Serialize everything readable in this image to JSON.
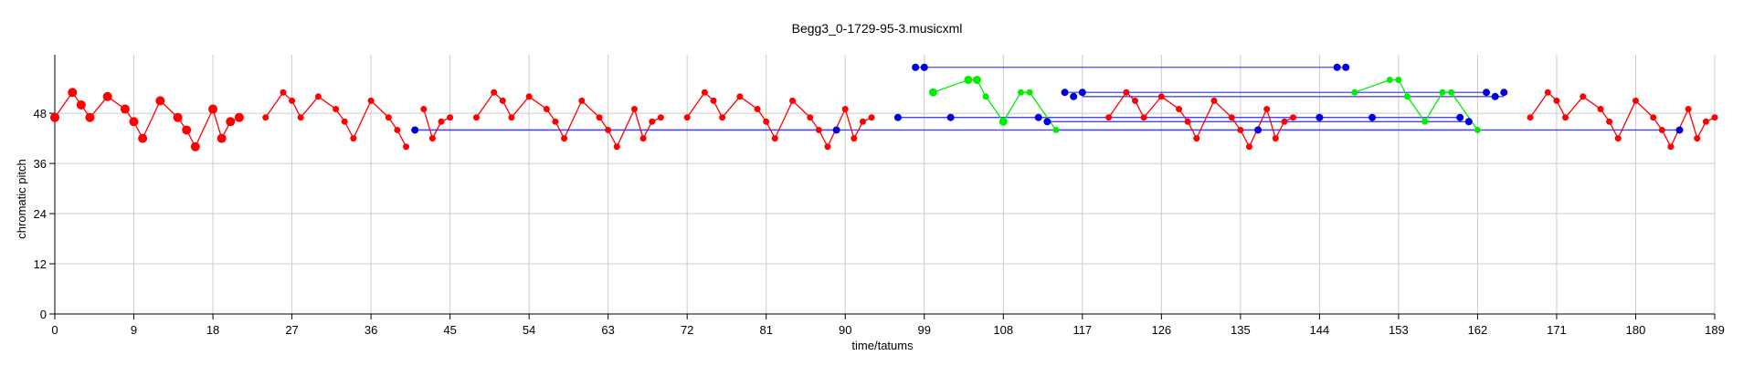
{
  "chart_data": {
    "type": "scatter",
    "title": "Begg3_0-1729-95-3.musicxml",
    "xlabel": "time/tatums",
    "ylabel": "chromatic pitch",
    "xlim": [
      0,
      189
    ],
    "ylim": [
      0,
      62
    ],
    "x_ticks": [
      "0",
      "9",
      "18",
      "27",
      "36",
      "45",
      "54",
      "63",
      "72",
      "81",
      "90",
      "99",
      "108",
      "117",
      "126",
      "135",
      "144",
      "153",
      "162",
      "171",
      "180",
      "189"
    ],
    "y_ticks": [
      "0",
      "12",
      "24",
      "36",
      "48"
    ],
    "grid": true,
    "colors": {
      "red": "#ff0000",
      "blue": "#0000dd",
      "green": "#00ee00",
      "blue_line": "#4444ff",
      "grid": "#cccccc"
    },
    "series": [
      {
        "color": "red",
        "segments": [
          [
            [
              0,
              47,
              9
            ],
            [
              2,
              53,
              9
            ],
            [
              3,
              50,
              9
            ],
            [
              4,
              47,
              9
            ],
            [
              6,
              52,
              9
            ],
            [
              8,
              49,
              9
            ],
            [
              9,
              46,
              9
            ],
            [
              10,
              42,
              9
            ],
            [
              12,
              51,
              9
            ],
            [
              14,
              47,
              9
            ],
            [
              15,
              44,
              9
            ],
            [
              16,
              40,
              9
            ],
            [
              18,
              49,
              9
            ],
            [
              19,
              42,
              9
            ],
            [
              20,
              46,
              9
            ],
            [
              21,
              47,
              9
            ]
          ],
          [
            [
              24,
              47,
              6
            ],
            [
              26,
              53,
              6
            ],
            [
              27,
              51,
              6
            ],
            [
              28,
              47,
              6
            ],
            [
              30,
              52,
              6
            ],
            [
              32,
              49,
              6
            ],
            [
              33,
              46,
              6
            ],
            [
              34,
              42,
              6
            ],
            [
              36,
              51,
              6
            ],
            [
              38,
              47,
              6
            ],
            [
              39,
              44,
              6
            ],
            [
              40,
              40,
              6
            ]
          ],
          [
            [
              42,
              49,
              6
            ],
            [
              43,
              42,
              6
            ],
            [
              44,
              46,
              6
            ],
            [
              45,
              47,
              6
            ]
          ],
          [
            [
              48,
              47,
              6
            ],
            [
              50,
              53,
              6
            ],
            [
              51,
              51,
              6
            ],
            [
              52,
              47,
              6
            ],
            [
              54,
              52,
              6
            ],
            [
              56,
              49,
              6
            ],
            [
              57,
              46,
              6
            ],
            [
              58,
              42,
              6
            ],
            [
              60,
              51,
              6
            ],
            [
              62,
              47,
              6
            ],
            [
              63,
              44,
              6
            ],
            [
              64,
              40,
              6
            ],
            [
              66,
              49,
              6
            ],
            [
              67,
              42,
              6
            ],
            [
              68,
              46,
              6
            ],
            [
              69,
              47,
              6
            ]
          ],
          [
            [
              72,
              47,
              6
            ],
            [
              74,
              53,
              6
            ],
            [
              75,
              51,
              6
            ],
            [
              76,
              47,
              6
            ],
            [
              78,
              52,
              6
            ],
            [
              80,
              49,
              6
            ],
            [
              81,
              46,
              6
            ],
            [
              82,
              42,
              6
            ],
            [
              84,
              51,
              6
            ],
            [
              86,
              47,
              6
            ],
            [
              87,
              44,
              6
            ],
            [
              88,
              40,
              6
            ],
            [
              90,
              49,
              6
            ],
            [
              91,
              42,
              6
            ],
            [
              92,
              46,
              6
            ],
            [
              93,
              47,
              6
            ]
          ],
          [
            [
              120,
              47,
              6
            ],
            [
              122,
              53,
              6
            ],
            [
              123,
              51,
              6
            ],
            [
              124,
              47,
              6
            ],
            [
              126,
              52,
              6
            ],
            [
              128,
              49,
              6
            ],
            [
              129,
              46,
              6
            ],
            [
              130,
              42,
              6
            ],
            [
              132,
              51,
              6
            ],
            [
              134,
              47,
              6
            ],
            [
              135,
              44,
              6
            ],
            [
              136,
              40,
              6
            ],
            [
              138,
              49,
              6
            ],
            [
              139,
              42,
              6
            ],
            [
              140,
              46,
              6
            ],
            [
              141,
              47,
              6
            ]
          ],
          [
            [
              168,
              47,
              6
            ],
            [
              170,
              53,
              6
            ],
            [
              171,
              51,
              6
            ],
            [
              172,
              47,
              6
            ],
            [
              174,
              52,
              6
            ],
            [
              176,
              49,
              6
            ],
            [
              177,
              46,
              6
            ],
            [
              178,
              42,
              6
            ],
            [
              180,
              51,
              6
            ],
            [
              182,
              47,
              6
            ],
            [
              183,
              44,
              6
            ],
            [
              184,
              40,
              6
            ],
            [
              186,
              49,
              6
            ],
            [
              187,
              42,
              6
            ],
            [
              188,
              46,
              6
            ],
            [
              189,
              47,
              6
            ]
          ]
        ]
      },
      {
        "color": "green",
        "segments": [
          [
            [
              100,
              53,
              8
            ],
            [
              104,
              56,
              8
            ],
            [
              105,
              56,
              8
            ],
            [
              106,
              52,
              6
            ],
            [
              108,
              46,
              8
            ],
            [
              110,
              53,
              6
            ],
            [
              111,
              53,
              6
            ],
            [
              114,
              44,
              6
            ]
          ],
          [
            [
              148,
              53,
              6
            ],
            [
              152,
              56,
              6
            ],
            [
              153,
              56,
              6
            ],
            [
              154,
              52,
              6
            ],
            [
              156,
              46,
              6
            ],
            [
              158,
              53,
              6
            ],
            [
              159,
              53,
              6
            ],
            [
              162,
              44,
              6
            ]
          ]
        ]
      }
    ],
    "blue_points": [
      [
        98,
        59
      ],
      [
        99,
        59
      ],
      [
        146,
        59
      ],
      [
        147,
        59
      ],
      [
        96,
        47
      ],
      [
        102,
        47
      ],
      [
        112,
        47
      ],
      [
        113,
        46
      ],
      [
        41,
        44
      ],
      [
        89,
        44
      ],
      [
        115,
        53
      ],
      [
        116,
        52
      ],
      [
        117,
        53
      ],
      [
        137,
        44
      ],
      [
        144,
        47
      ],
      [
        150,
        47
      ],
      [
        160,
        47
      ],
      [
        161,
        46
      ],
      [
        163,
        53
      ],
      [
        164,
        52
      ],
      [
        165,
        53
      ],
      [
        185,
        44
      ]
    ],
    "blue_lines": [
      [
        98,
        59,
        147,
        59
      ],
      [
        41,
        44,
        89,
        44
      ],
      [
        96,
        47,
        160,
        47
      ],
      [
        113,
        46,
        161,
        46
      ],
      [
        115,
        53,
        163,
        53
      ],
      [
        117,
        52,
        165,
        52
      ],
      [
        41,
        44,
        185,
        44
      ],
      [
        114,
        44,
        162,
        44
      ]
    ]
  }
}
